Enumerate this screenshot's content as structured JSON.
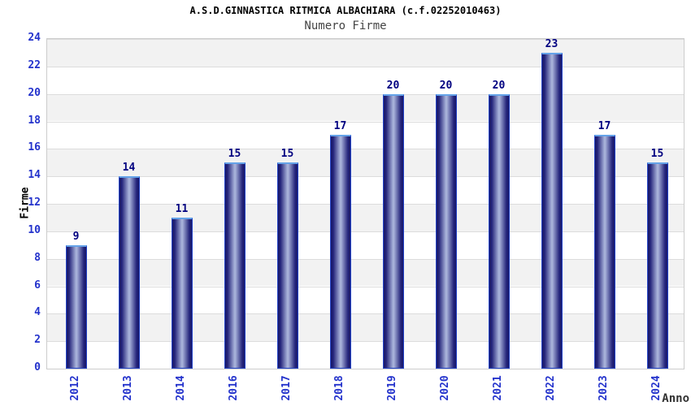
{
  "header": {
    "title": "A.S.D.GINNASTICA RITMICA ALBACHIARA (c.f.02252010463)",
    "subtitle": "Numero Firme"
  },
  "axes": {
    "ylabel": "Firme",
    "xlabel": "Anno"
  },
  "chart_data": {
    "type": "bar",
    "title": "A.S.D.GINNASTICA RITMICA ALBACHIARA (c.f.02252010463)",
    "subtitle": "Numero Firme",
    "xlabel": "Anno",
    "ylabel": "Firme",
    "categories": [
      "2012",
      "2013",
      "2014",
      "2016",
      "2017",
      "2018",
      "2019",
      "2020",
      "2021",
      "2022",
      "2023",
      "2024"
    ],
    "values": [
      9,
      14,
      11,
      15,
      15,
      17,
      20,
      20,
      20,
      23,
      17,
      15
    ],
    "ylim": [
      0,
      24
    ],
    "ytick_step": 2,
    "ytick_labels": [
      "0",
      "2",
      "4",
      "6",
      "8",
      "10",
      "12",
      "14",
      "16",
      "18",
      "20",
      "22",
      "24"
    ],
    "grid": "alternating horizontal bands, gray topmost",
    "legend": "none",
    "colors": {
      "bar_edge_dark": "#191968",
      "bar_center_light": "#a8b2da",
      "bar_border": "#2343c8",
      "bar_top_cap": "#64a2e8",
      "tick_label": "#2433cc",
      "value_label": "#000080",
      "band_gray": "#f2f2f2",
      "band_white": "#ffffff",
      "grid_line": "#dcdcdc",
      "plot_border": "#cccccc",
      "title_color": "#000000",
      "subtitle_color": "#444444",
      "xlabel_color": "#333333",
      "background": "#ffffff"
    }
  }
}
